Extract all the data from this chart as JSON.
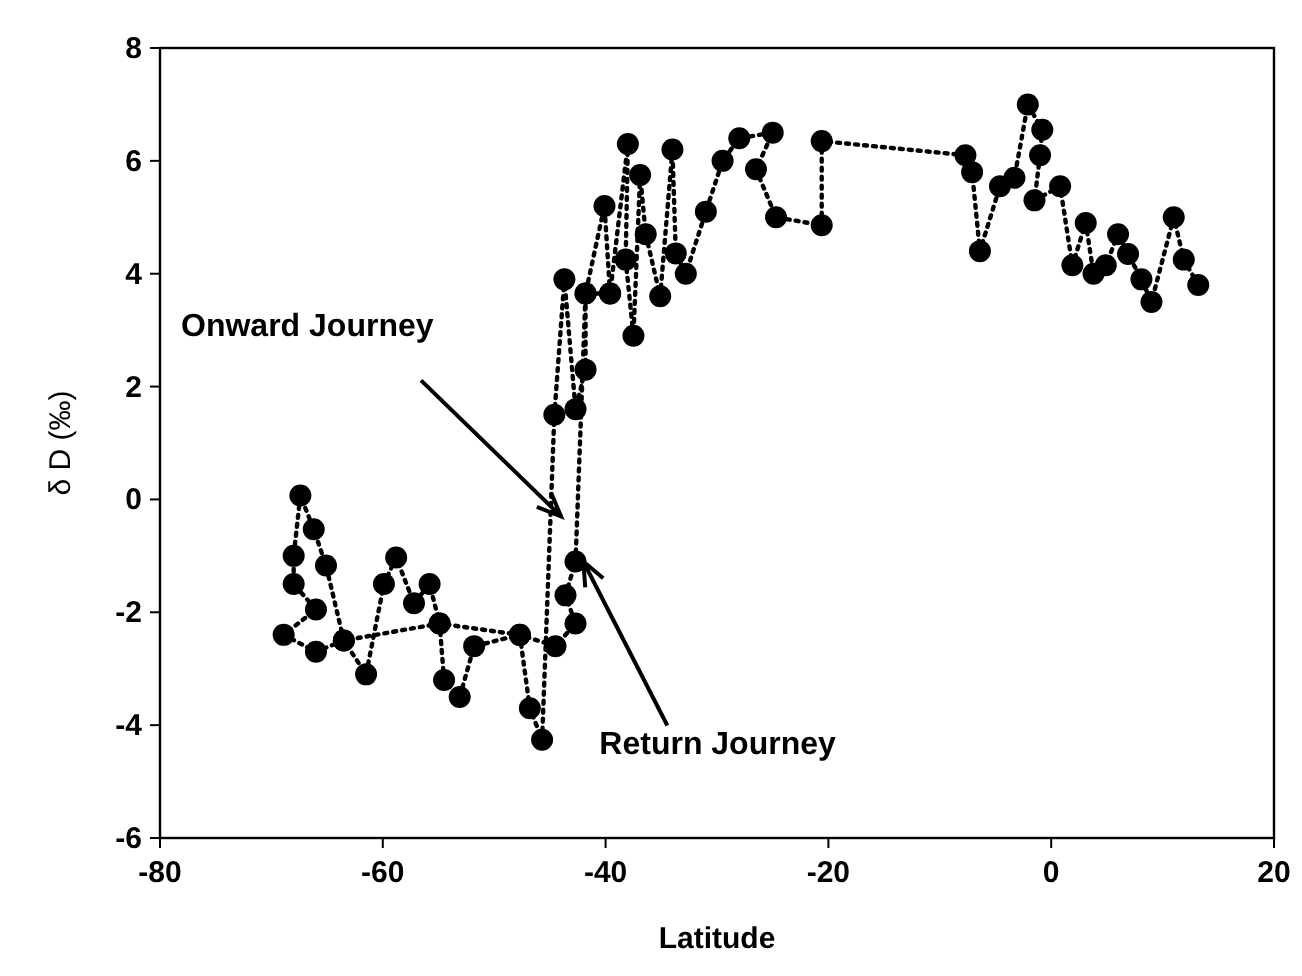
{
  "chart_data": {
    "type": "line",
    "xlabel": "Latitude",
    "ylabel": "δ D (‰)",
    "xlim": [
      -80,
      20
    ],
    "ylim": [
      -6,
      8
    ],
    "xticks": [
      -80,
      -60,
      -40,
      -20,
      0,
      20
    ],
    "yticks": [
      -6,
      -4,
      -2,
      0,
      2,
      4,
      6,
      8
    ],
    "grid": false,
    "marker": "circle",
    "line_style": "dotted",
    "series": [
      {
        "color": "#000000",
        "x": [
          13.2,
          11.9,
          11.0,
          9.0,
          8.1,
          6.9,
          6.0,
          4.9,
          3.8,
          3.1,
          1.9,
          0.8,
          -1.5,
          -1.0,
          -0.8,
          -2.1,
          -3.3,
          -4.6,
          -6.4,
          -7.1,
          -7.7,
          -20.6,
          -20.6,
          -24.7,
          -26.5,
          -25,
          -28,
          -29.5,
          -31,
          -32.8,
          -33.7,
          -34,
          -35.1,
          -36.4,
          -36.9,
          -37.5,
          -38.2,
          -38,
          -39.6,
          -40.1,
          -41.8,
          -41.8,
          -42.7,
          -43.7,
          -44.6,
          -45.7,
          -46.8,
          -47.7,
          -51.8,
          -53.1,
          -54.5,
          -54.9,
          -55.8,
          -57.2,
          -58.8,
          -59.9,
          -61.5,
          -63.5,
          -65.1,
          -66.2,
          -67.4,
          -68,
          -68,
          -66,
          -68.9,
          -66,
          -63.5,
          -54.9,
          -47.7,
          -44.5,
          -42.7,
          -43.6,
          -42.7,
          -41.8,
          -39.6
        ],
        "values": [
          3.8,
          4.25,
          5.0,
          3.5,
          3.9,
          4.35,
          4.7,
          4.15,
          4.0,
          4.9,
          4.15,
          5.55,
          5.3,
          6.1,
          6.55,
          7.0,
          5.7,
          5.55,
          4.4,
          5.8,
          6.1,
          6.35,
          4.86,
          5.0,
          5.85,
          6.5,
          6.4,
          6.0,
          5.1,
          4.0,
          4.36,
          6.2,
          3.6,
          4.7,
          5.75,
          2.9,
          4.25,
          6.3,
          3.65,
          5.2,
          3.65,
          2.3,
          1.6,
          3.9,
          1.5,
          -4.26,
          -3.7,
          -2.4,
          -2.6,
          -3.5,
          -3.2,
          -2.2,
          -1.5,
          -1.84,
          -1.03,
          -1.5,
          -3.1,
          -2.5,
          -1.17,
          -0.53,
          0.07,
          -1.0,
          -1.5,
          -1.95,
          -2.4,
          -2.7,
          -2.5,
          -2.2,
          -2.4,
          -2.6,
          -2.2,
          -1.7,
          -1.1,
          3.65,
          3.65
        ]
      }
    ],
    "annotations": [
      {
        "text": "Onward Journey",
        "x": -44,
        "y": -0.3
      },
      {
        "text": "Return Journey",
        "x": -42,
        "y": -1.1
      }
    ]
  }
}
